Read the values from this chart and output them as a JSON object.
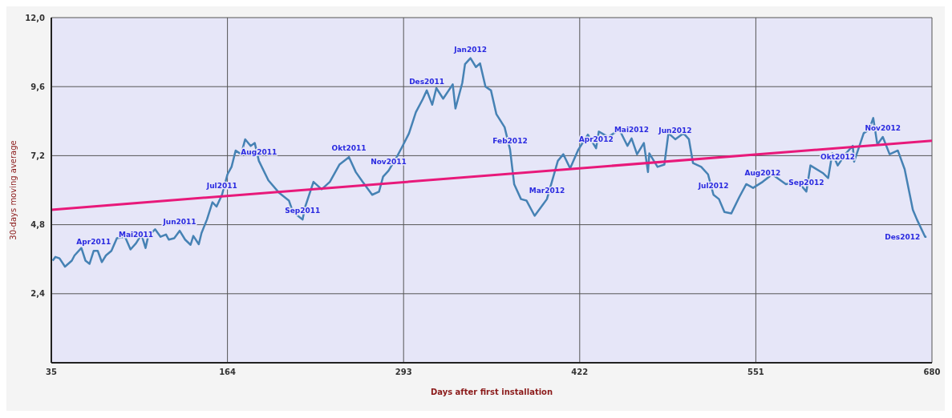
{
  "chart_data": {
    "type": "line",
    "xlabel": "Days after first installation",
    "ylabel": "30-days moving average",
    "xlim": [
      35,
      680
    ],
    "xticks": [
      35,
      164,
      293,
      422,
      551,
      680
    ],
    "ylim": [
      0,
      12
    ],
    "yticks": [
      {
        "value": 2.4,
        "label": "2,4"
      },
      {
        "value": 4.8,
        "label": "4,8"
      },
      {
        "value": 7.2,
        "label": "7,2"
      },
      {
        "value": 9.6,
        "label": "9,6"
      },
      {
        "value": 12,
        "label": "12,0"
      }
    ],
    "grid": true,
    "marker": "none",
    "line_style": "solid",
    "series": [
      {
        "color": "#4682b4",
        "x": [
          36,
          38,
          41,
          45,
          50,
          52,
          57,
          60,
          63,
          66,
          69,
          72,
          75,
          79,
          83,
          89,
          93,
          97,
          101,
          104,
          106,
          111,
          115,
          119,
          121,
          125,
          129,
          133,
          137,
          139,
          143,
          145,
          149,
          153,
          156,
          160,
          164,
          167,
          170,
          174,
          177,
          181,
          184,
          187,
          194,
          202,
          209,
          212,
          219,
          221,
          227,
          233,
          239,
          246,
          253,
          258,
          263,
          270,
          275,
          278,
          282,
          288,
          292,
          297,
          302,
          307,
          310,
          314,
          317,
          322,
          329,
          331,
          336,
          338,
          342,
          346,
          349,
          353,
          357,
          361,
          367,
          371,
          374,
          379,
          383,
          389,
          398,
          406,
          410,
          415,
          421,
          428,
          434,
          436,
          443,
          451,
          457,
          460,
          464,
          469,
          472,
          473,
          479,
          484,
          487,
          492,
          498,
          502,
          505,
          511,
          516,
          520,
          524,
          528,
          533,
          539,
          544,
          549,
          556,
          563,
          573,
          582,
          588,
          591,
          600,
          604,
          607,
          611,
          617,
          622,
          623,
          630,
          634,
          637,
          640,
          644,
          649,
          655,
          660,
          666,
          669,
          675,
          676
        ],
        "values": [
          3.55,
          3.68,
          3.63,
          3.34,
          3.55,
          3.73,
          3.99,
          3.55,
          3.44,
          3.89,
          3.89,
          3.5,
          3.73,
          3.89,
          4.33,
          4.38,
          3.94,
          4.15,
          4.46,
          3.99,
          4.41,
          4.64,
          4.38,
          4.46,
          4.28,
          4.33,
          4.59,
          4.28,
          4.1,
          4.41,
          4.12,
          4.51,
          4.98,
          5.58,
          5.43,
          5.84,
          6.55,
          6.81,
          7.38,
          7.25,
          7.77,
          7.54,
          7.64,
          7.02,
          6.34,
          5.9,
          5.64,
          5.24,
          4.98,
          5.43,
          6.29,
          6.03,
          6.29,
          6.89,
          7.15,
          6.63,
          6.29,
          5.84,
          5.95,
          6.47,
          6.68,
          7.15,
          7.51,
          7.98,
          8.71,
          9.16,
          9.47,
          8.97,
          9.55,
          9.18,
          9.68,
          8.84,
          9.73,
          10.38,
          10.59,
          10.28,
          10.41,
          9.6,
          9.47,
          8.64,
          8.19,
          7.41,
          6.21,
          5.69,
          5.64,
          5.11,
          5.69,
          7.02,
          7.25,
          6.76,
          7.41,
          7.93,
          7.46,
          8.04,
          7.85,
          8.11,
          7.54,
          7.8,
          7.25,
          7.64,
          6.63,
          7.28,
          6.81,
          6.89,
          7.98,
          7.77,
          7.98,
          7.77,
          6.94,
          6.81,
          6.55,
          5.84,
          5.69,
          5.24,
          5.19,
          5.77,
          6.21,
          6.08,
          6.29,
          6.55,
          6.21,
          6.29,
          5.95,
          6.86,
          6.6,
          6.42,
          7.28,
          6.86,
          7.28,
          7.54,
          6.99,
          7.98,
          8.11,
          8.51,
          7.59,
          7.85,
          7.25,
          7.38,
          6.73,
          5.32,
          4.98,
          4.38,
          4.38
        ]
      },
      {
        "type": "line",
        "color": "#e8197a",
        "x": [
          35,
          680
        ],
        "values": [
          5.32,
          7.72
        ]
      }
    ],
    "annotations": [
      {
        "text": "Apr2011",
        "x": 66,
        "y": 3.89
      },
      {
        "text": "Mai2011",
        "x": 97,
        "y": 4.15
      },
      {
        "text": "Jun2011",
        "x": 129,
        "y": 4.59
      },
      {
        "text": "Jul2011",
        "x": 160,
        "y": 5.84
      },
      {
        "text": "Aug2011",
        "x": 187,
        "y": 7.02
      },
      {
        "text": "Sep2011",
        "x": 219,
        "y": 4.98
      },
      {
        "text": "Okt2011",
        "x": 253,
        "y": 7.15
      },
      {
        "text": "Nov2011",
        "x": 282,
        "y": 6.68
      },
      {
        "text": "Des2011",
        "x": 310,
        "y": 9.47
      },
      {
        "text": "Jan2012",
        "x": 342,
        "y": 10.59
      },
      {
        "text": "Feb2012",
        "x": 371,
        "y": 7.41
      },
      {
        "text": "Mar2012",
        "x": 398,
        "y": 5.69
      },
      {
        "text": "Apr2012",
        "x": 434,
        "y": 7.46
      },
      {
        "text": "Mai2012",
        "x": 460,
        "y": 7.8
      },
      {
        "text": "Jun2012",
        "x": 492,
        "y": 7.77
      },
      {
        "text": "Jul2012",
        "x": 520,
        "y": 5.84
      },
      {
        "text": "Aug2012",
        "x": 556,
        "y": 6.29
      },
      {
        "text": "Sep2012",
        "x": 588,
        "y": 5.95
      },
      {
        "text": "Okt2012",
        "x": 611,
        "y": 6.86
      },
      {
        "text": "Nov2012",
        "x": 644,
        "y": 7.85
      },
      {
        "text": "Des2012",
        "x": 676,
        "y": 4.38
      }
    ]
  }
}
